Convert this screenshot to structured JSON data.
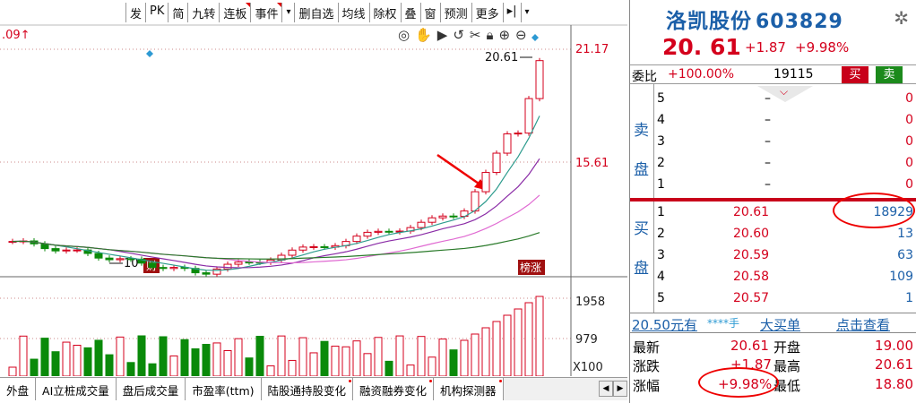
{
  "toolbar": {
    "items": [
      "发",
      "PK",
      "简",
      "九转",
      "连板",
      "事件",
      "▾",
      "删自选",
      "均线",
      "除权",
      "叠",
      "窗",
      "预测",
      "更多",
      "▸|",
      "▾"
    ]
  },
  "chart_tools": [
    "view-icon",
    "hand-icon",
    "play-icon",
    "undo-icon",
    "cut-icon",
    "lock-icon",
    "zoom-in-icon",
    "zoom-out-icon"
  ],
  "chart_labels": {
    "top_left": ".09↑",
    "price_high": "20.61",
    "axis_high": "21.17",
    "axis_mid": "15.61",
    "low_label": "10",
    "low_tag": "财",
    "limit_tag": "榜涨",
    "vol_high": "1958",
    "vol_mid": "979",
    "vol_unit": "X100"
  },
  "chart_data": {
    "type": "candlestick",
    "y_axis_ticks": [
      21.17,
      15.61
    ],
    "volume_axis_ticks": [
      1958,
      979
    ],
    "volume_unit": "X100",
    "high_marker": 20.61,
    "low_marker": 10
  },
  "bottom_tabs": [
    {
      "label": "外盘",
      "dot": false
    },
    {
      "label": "AI立桩成交量",
      "dot": false
    },
    {
      "label": "盘后成交量",
      "dot": false
    },
    {
      "label": "市盈率(ttm)",
      "dot": false
    },
    {
      "label": "陆股通持股变化",
      "dot": true
    },
    {
      "label": "融资融券变化",
      "dot": true
    },
    {
      "label": "机构探测器",
      "dot": true
    }
  ],
  "quote": {
    "name": "洛凯股份",
    "code": "603829",
    "price": "20. 61",
    "change": "+1.87",
    "pct": "+9.98%",
    "wb_label": "委比",
    "wb_value": "+100.00%",
    "wb_diff": "19115",
    "buy": "买",
    "sell": "卖",
    "sell_side": "卖盘",
    "buy_side": "买盘",
    "asks": [
      {
        "lvl": "5",
        "price": "–",
        "vol": "0"
      },
      {
        "lvl": "4",
        "price": "–",
        "vol": "0"
      },
      {
        "lvl": "3",
        "price": "–",
        "vol": "0"
      },
      {
        "lvl": "2",
        "price": "–",
        "vol": "0"
      },
      {
        "lvl": "1",
        "price": "–",
        "vol": "0"
      }
    ],
    "bids": [
      {
        "lvl": "1",
        "price": "20.61",
        "vol": "18929"
      },
      {
        "lvl": "2",
        "price": "20.60",
        "vol": "13"
      },
      {
        "lvl": "3",
        "price": "20.59",
        "vol": "63"
      },
      {
        "lvl": "4",
        "price": "20.58",
        "vol": "109"
      },
      {
        "lvl": "5",
        "price": "20.57",
        "vol": "1"
      }
    ],
    "f10": {
      "a": "20.50元有",
      "b": "****手",
      "c": "大买单",
      "d": "点击查看"
    },
    "stats": [
      {
        "l1": "最新",
        "v1": "20.61",
        "l2": "开盘",
        "v2": "19.00"
      },
      {
        "l1": "涨跌",
        "v1": "+1.87",
        "l2": "最高",
        "v2": "20.61"
      },
      {
        "l1": "涨幅",
        "v1": "+9.98%",
        "l2": "最低",
        "v2": "18.80"
      }
    ]
  }
}
